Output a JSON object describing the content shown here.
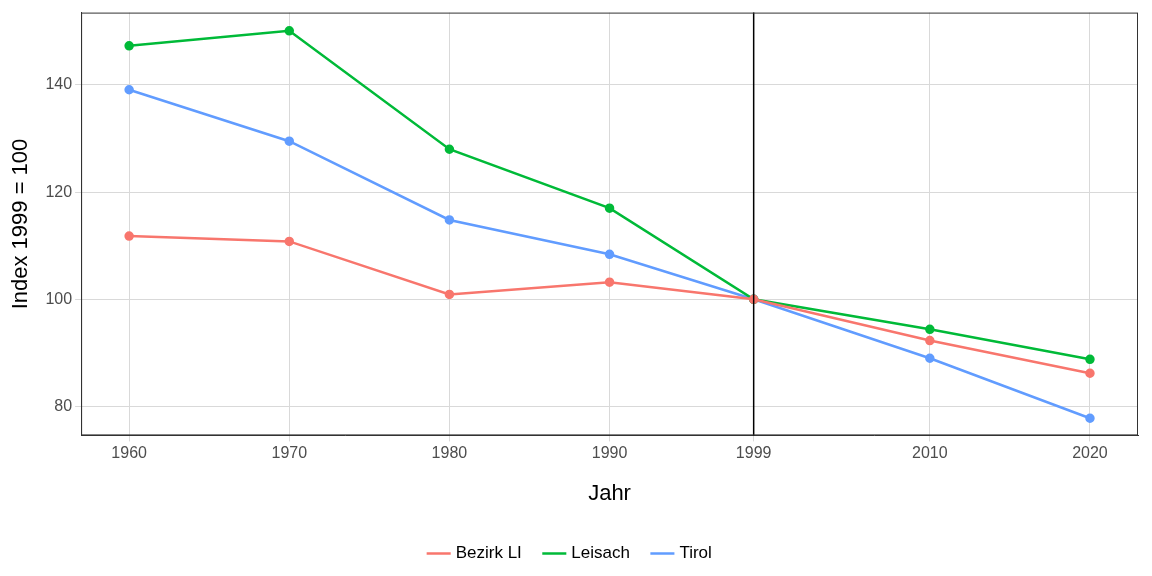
{
  "chart_data": {
    "type": "line",
    "x_label": "Jahr",
    "y_label": "Index 1999 = 100",
    "x": [
      1960,
      1970,
      1980,
      1990,
      1999,
      2010,
      2020
    ],
    "series": [
      {
        "name": "Bezirk LI",
        "color": "#F8766D",
        "marker": "circle",
        "values": [
          111.8,
          110.8,
          100.9,
          103.2,
          100,
          92.3,
          86.2
        ]
      },
      {
        "name": "Leisach",
        "color": "#00BA38",
        "marker": "circle",
        "values": [
          147.3,
          150.1,
          128.0,
          117.0,
          100,
          94.4,
          88.8
        ]
      },
      {
        "name": "Tirol",
        "color": "#619CFF",
        "marker": "circle",
        "values": [
          139.1,
          129.5,
          114.8,
          108.4,
          100,
          89.0,
          77.8
        ]
      }
    ],
    "xlim": [
      1957,
      2023
    ],
    "xticks": [
      1960,
      1970,
      1980,
      1990,
      1999,
      2010,
      2020
    ],
    "ylim": [
      74.6,
      153.5
    ],
    "yticks": [
      80,
      100,
      120,
      140
    ],
    "vlines": [
      {
        "x": 1999,
        "color": "#000000"
      }
    ],
    "grid": true,
    "legend": "bottom"
  }
}
